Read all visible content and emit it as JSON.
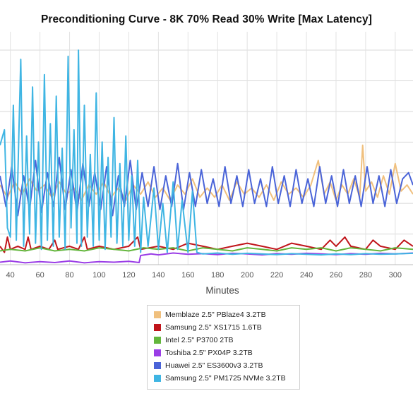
{
  "title": "Preconditioning Curve - 8K 70% Read 30% Write [Max Latency]",
  "chart_data": {
    "type": "line",
    "title": "Preconditioning Curve - 8K 70% Read 30% Write [Max Latency]",
    "xlabel": "Minutes",
    "ylabel": "",
    "x_ticks": [
      40,
      60,
      80,
      100,
      120,
      140,
      160,
      180,
      200,
      220,
      240,
      260,
      280,
      300
    ],
    "xlim": [
      33,
      312
    ],
    "ylim": [
      0,
      7.6
    ],
    "grid": true,
    "legend_position": "bottom",
    "series": [
      {
        "name": "Memblaze 2.5\" PBlaze4 3.2TB",
        "color": "#f0c07e",
        "points": [
          [
            33,
            2.6
          ],
          [
            38,
            2.2
          ],
          [
            43,
            2.7
          ],
          [
            48,
            2.3
          ],
          [
            53,
            2.8
          ],
          [
            58,
            2.4
          ],
          [
            63,
            2.6
          ],
          [
            68,
            2.2
          ],
          [
            73,
            2.7
          ],
          [
            78,
            2.3
          ],
          [
            83,
            2.5
          ],
          [
            88,
            2.1
          ],
          [
            93,
            2.6
          ],
          [
            98,
            2.3
          ],
          [
            103,
            2.7
          ],
          [
            108,
            2.2
          ],
          [
            113,
            2.5
          ],
          [
            118,
            2.1
          ],
          [
            123,
            2.6
          ],
          [
            128,
            2.3
          ],
          [
            133,
            2.7
          ],
          [
            138,
            2.2
          ],
          [
            143,
            2.5
          ],
          [
            148,
            2.1
          ],
          [
            153,
            2.6
          ],
          [
            158,
            2.3
          ],
          [
            163,
            2.8
          ],
          [
            168,
            2.2
          ],
          [
            173,
            2.5
          ],
          [
            178,
            2.2
          ],
          [
            183,
            2.6
          ],
          [
            188,
            2.1
          ],
          [
            193,
            2.7
          ],
          [
            198,
            2.3
          ],
          [
            203,
            2.5
          ],
          [
            208,
            2.2
          ],
          [
            213,
            2.6
          ],
          [
            218,
            2.1
          ],
          [
            223,
            2.7
          ],
          [
            228,
            2.3
          ],
          [
            233,
            2.5
          ],
          [
            238,
            2.2
          ],
          [
            243,
            2.6
          ],
          [
            248,
            3.4
          ],
          [
            252,
            2.3
          ],
          [
            256,
            2.7
          ],
          [
            260,
            2.1
          ],
          [
            264,
            2.6
          ],
          [
            268,
            2.3
          ],
          [
            272,
            2.8
          ],
          [
            276,
            2.2
          ],
          [
            278,
            3.9
          ],
          [
            280,
            2.4
          ],
          [
            284,
            2.7
          ],
          [
            288,
            2.2
          ],
          [
            292,
            2.9
          ],
          [
            296,
            2.3
          ],
          [
            300,
            3.3
          ],
          [
            304,
            2.4
          ],
          [
            308,
            2.6
          ],
          [
            312,
            2.3
          ]
        ]
      },
      {
        "name": "Samsung 2.5\" XS1715 1.6TB",
        "color": "#c0141a",
        "points": [
          [
            33,
            0.6
          ],
          [
            36,
            0.4
          ],
          [
            38,
            0.9
          ],
          [
            40,
            0.5
          ],
          [
            45,
            0.6
          ],
          [
            50,
            0.5
          ],
          [
            52,
            0.9
          ],
          [
            54,
            0.5
          ],
          [
            60,
            0.6
          ],
          [
            66,
            0.5
          ],
          [
            70,
            0.8
          ],
          [
            72,
            0.5
          ],
          [
            80,
            0.6
          ],
          [
            86,
            0.5
          ],
          [
            90,
            0.9
          ],
          [
            92,
            0.5
          ],
          [
            100,
            0.6
          ],
          [
            110,
            0.5
          ],
          [
            120,
            0.6
          ],
          [
            126,
            0.9
          ],
          [
            128,
            0.5
          ],
          [
            140,
            0.6
          ],
          [
            150,
            0.5
          ],
          [
            160,
            0.7
          ],
          [
            170,
            0.6
          ],
          [
            180,
            0.5
          ],
          [
            190,
            0.6
          ],
          [
            200,
            0.7
          ],
          [
            210,
            0.6
          ],
          [
            220,
            0.5
          ],
          [
            230,
            0.7
          ],
          [
            240,
            0.6
          ],
          [
            250,
            0.5
          ],
          [
            256,
            0.8
          ],
          [
            260,
            0.6
          ],
          [
            266,
            0.9
          ],
          [
            270,
            0.6
          ],
          [
            280,
            0.5
          ],
          [
            285,
            0.8
          ],
          [
            290,
            0.6
          ],
          [
            300,
            0.5
          ],
          [
            306,
            0.8
          ],
          [
            312,
            0.6
          ]
        ]
      },
      {
        "name": "Intel 2.5\" P3700 2TB",
        "color": "#63b63c",
        "points": [
          [
            33,
            0.45
          ],
          [
            40,
            0.5
          ],
          [
            50,
            0.45
          ],
          [
            60,
            0.55
          ],
          [
            70,
            0.45
          ],
          [
            80,
            0.5
          ],
          [
            90,
            0.45
          ],
          [
            100,
            0.55
          ],
          [
            110,
            0.5
          ],
          [
            120,
            0.45
          ],
          [
            130,
            0.55
          ],
          [
            140,
            0.5
          ],
          [
            150,
            0.55
          ],
          [
            160,
            0.45
          ],
          [
            170,
            0.55
          ],
          [
            180,
            0.5
          ],
          [
            190,
            0.45
          ],
          [
            200,
            0.55
          ],
          [
            210,
            0.5
          ],
          [
            220,
            0.45
          ],
          [
            230,
            0.55
          ],
          [
            240,
            0.5
          ],
          [
            250,
            0.55
          ],
          [
            260,
            0.45
          ],
          [
            270,
            0.55
          ],
          [
            280,
            0.5
          ],
          [
            290,
            0.45
          ],
          [
            300,
            0.55
          ],
          [
            312,
            0.5
          ]
        ]
      },
      {
        "name": "Toshiba 2.5\" PX04P 3.2TB",
        "color": "#9a3de6",
        "points": [
          [
            33,
            0.08
          ],
          [
            40,
            0.12
          ],
          [
            50,
            0.06
          ],
          [
            60,
            0.1
          ],
          [
            70,
            0.07
          ],
          [
            80,
            0.12
          ],
          [
            90,
            0.06
          ],
          [
            100,
            0.1
          ],
          [
            110,
            0.08
          ],
          [
            120,
            0.11
          ],
          [
            127,
            0.07
          ],
          [
            128,
            0.3
          ],
          [
            135,
            0.35
          ],
          [
            140,
            0.32
          ],
          [
            150,
            0.38
          ],
          [
            160,
            0.34
          ],
          [
            170,
            0.36
          ],
          [
            180,
            0.33
          ],
          [
            190,
            0.37
          ],
          [
            200,
            0.35
          ],
          [
            210,
            0.32
          ],
          [
            220,
            0.36
          ],
          [
            230,
            0.34
          ],
          [
            240,
            0.37
          ],
          [
            250,
            0.35
          ],
          [
            260,
            0.33
          ],
          [
            270,
            0.36
          ],
          [
            280,
            0.34
          ],
          [
            290,
            0.37
          ],
          [
            300,
            0.35
          ],
          [
            312,
            0.38
          ]
        ]
      },
      {
        "name": "Huawei 2.5\" ES3600v3 3.2TB",
        "color": "#4a64d8",
        "points": [
          [
            33,
            2.9
          ],
          [
            37,
            1.9
          ],
          [
            41,
            3.2
          ],
          [
            45,
            1.6
          ],
          [
            49,
            2.9
          ],
          [
            53,
            1.8
          ],
          [
            57,
            3.4
          ],
          [
            61,
            1.7
          ],
          [
            65,
            3.0
          ],
          [
            69,
            1.9
          ],
          [
            73,
            3.5
          ],
          [
            77,
            1.8
          ],
          [
            81,
            3.1
          ],
          [
            85,
            1.7
          ],
          [
            89,
            3.3
          ],
          [
            93,
            1.9
          ],
          [
            97,
            3.0
          ],
          [
            101,
            1.8
          ],
          [
            105,
            3.2
          ],
          [
            109,
            1.6
          ],
          [
            113,
            2.9
          ],
          [
            117,
            1.9
          ],
          [
            121,
            3.4
          ],
          [
            125,
            1.8
          ],
          [
            129,
            3.0
          ],
          [
            133,
            1.9
          ],
          [
            137,
            3.2
          ],
          [
            141,
            1.8
          ],
          [
            145,
            2.9
          ],
          [
            149,
            1.9
          ],
          [
            153,
            3.3
          ],
          [
            157,
            1.8
          ],
          [
            161,
            3.0
          ],
          [
            165,
            1.9
          ],
          [
            169,
            3.1
          ],
          [
            173,
            2.0
          ],
          [
            177,
            2.8
          ],
          [
            181,
            1.9
          ],
          [
            185,
            3.2
          ],
          [
            189,
            2.0
          ],
          [
            193,
            2.9
          ],
          [
            197,
            1.9
          ],
          [
            201,
            3.1
          ],
          [
            205,
            2.0
          ],
          [
            209,
            2.8
          ],
          [
            213,
            1.9
          ],
          [
            217,
            3.2
          ],
          [
            221,
            2.0
          ],
          [
            225,
            2.9
          ],
          [
            229,
            1.9
          ],
          [
            233,
            3.1
          ],
          [
            237,
            2.0
          ],
          [
            241,
            2.8
          ],
          [
            245,
            1.9
          ],
          [
            249,
            3.2
          ],
          [
            253,
            2.0
          ],
          [
            257,
            2.9
          ],
          [
            261,
            1.9
          ],
          [
            265,
            3.1
          ],
          [
            269,
            2.0
          ],
          [
            273,
            2.9
          ],
          [
            277,
            1.9
          ],
          [
            281,
            3.2
          ],
          [
            285,
            2.0
          ],
          [
            289,
            2.9
          ],
          [
            293,
            1.9
          ],
          [
            297,
            3.1
          ],
          [
            301,
            2.0
          ],
          [
            305,
            2.8
          ],
          [
            309,
            3.0
          ],
          [
            312,
            2.6
          ]
        ]
      },
      {
        "name": "Samsung 2.5\" PM1725 NVMe 3.2TB",
        "color": "#3fb5e3",
        "points": [
          [
            33,
            3.9
          ],
          [
            36,
            4.4
          ],
          [
            38,
            1.2
          ],
          [
            40,
            0.9
          ],
          [
            42,
            5.2
          ],
          [
            44,
            0.8
          ],
          [
            46,
            4.8
          ],
          [
            47,
            6.7
          ],
          [
            49,
            0.6
          ],
          [
            51,
            4.2
          ],
          [
            53,
            1.0
          ],
          [
            55,
            5.8
          ],
          [
            57,
            0.7
          ],
          [
            59,
            4.0
          ],
          [
            61,
            0.5
          ],
          [
            63,
            6.2
          ],
          [
            65,
            0.8
          ],
          [
            67,
            4.6
          ],
          [
            69,
            0.6
          ],
          [
            71,
            5.5
          ],
          [
            73,
            0.9
          ],
          [
            75,
            3.8
          ],
          [
            77,
            0.5
          ],
          [
            79,
            6.8
          ],
          [
            81,
            1.2
          ],
          [
            83,
            4.4
          ],
          [
            85,
            0.7
          ],
          [
            86,
            7.0
          ],
          [
            88,
            0.6
          ],
          [
            90,
            5.2
          ],
          [
            92,
            0.9
          ],
          [
            94,
            3.6
          ],
          [
            96,
            0.6
          ],
          [
            98,
            5.6
          ],
          [
            100,
            0.8
          ],
          [
            102,
            4.0
          ],
          [
            104,
            0.5
          ],
          [
            106,
            3.5
          ],
          [
            108,
            0.9
          ],
          [
            110,
            4.8
          ],
          [
            112,
            0.7
          ],
          [
            114,
            3.3
          ],
          [
            116,
            0.6
          ],
          [
            118,
            4.2
          ],
          [
            120,
            0.8
          ],
          [
            122,
            2.9
          ],
          [
            124,
            0.6
          ],
          [
            126,
            3.4
          ],
          [
            128,
            0.4
          ],
          [
            130,
            2.2
          ],
          [
            133,
            0.6
          ],
          [
            137,
            2.5
          ],
          [
            140,
            0.5
          ],
          [
            143,
            2.0
          ],
          [
            146,
            0.4
          ],
          [
            150,
            2.7
          ],
          [
            153,
            0.5
          ],
          [
            156,
            2.1
          ],
          [
            160,
            0.4
          ],
          [
            163,
            2.4
          ],
          [
            166,
            0.4
          ],
          [
            170,
            0.35
          ],
          [
            180,
            0.38
          ],
          [
            190,
            0.34
          ],
          [
            200,
            0.37
          ],
          [
            210,
            0.35
          ],
          [
            220,
            0.33
          ],
          [
            230,
            0.36
          ],
          [
            240,
            0.34
          ],
          [
            250,
            0.32
          ],
          [
            260,
            0.35
          ],
          [
            270,
            0.33
          ],
          [
            280,
            0.36
          ],
          [
            290,
            0.34
          ],
          [
            300,
            0.35
          ],
          [
            312,
            0.37
          ]
        ]
      }
    ]
  }
}
